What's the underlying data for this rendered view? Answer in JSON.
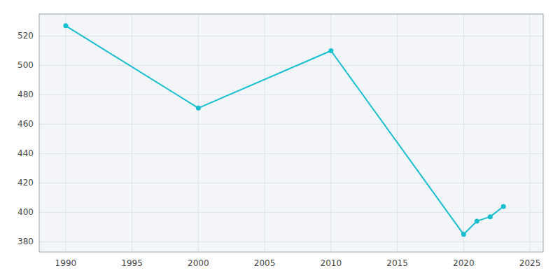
{
  "chart_data": {
    "type": "line",
    "x": [
      1990,
      2000,
      2010,
      2020,
      2021,
      2022,
      2023
    ],
    "values": [
      527,
      471,
      510,
      385,
      394,
      397,
      404
    ],
    "color": "#17becf",
    "marker": "circle",
    "xlim": [
      1988,
      2026
    ],
    "ylim": [
      373,
      535
    ],
    "xticks": [
      1990,
      1995,
      2000,
      2005,
      2010,
      2015,
      2020,
      2025
    ],
    "yticks": [
      380,
      400,
      420,
      440,
      460,
      480,
      500,
      520
    ],
    "grid": true
  }
}
